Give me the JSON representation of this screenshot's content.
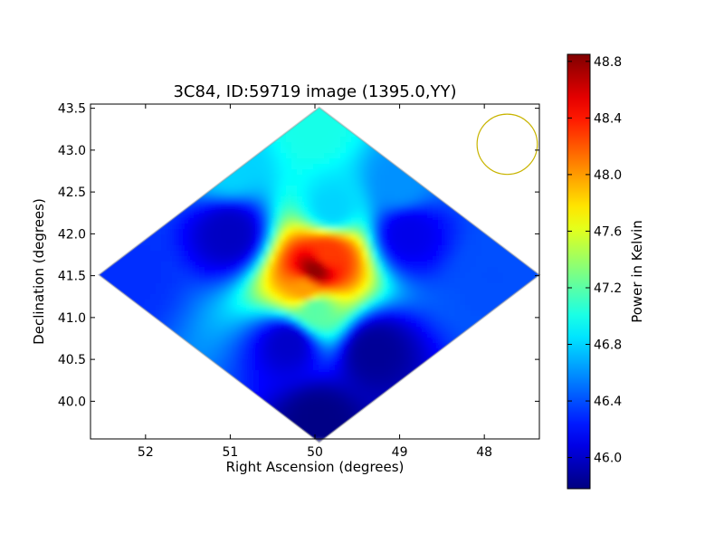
{
  "chart_data": {
    "type": "heatmap",
    "title": "3C84, ID:59719 image (1395.0,YY)",
    "xlabel": "Right Ascension (degrees)",
    "ylabel": "Declination (degrees)",
    "xlim": [
      52.65,
      47.35
    ],
    "ylim": [
      39.55,
      43.55
    ],
    "x_axis_inverted": true,
    "x_ticks": [
      52,
      51,
      50,
      49,
      48
    ],
    "y_ticks": [
      40.0,
      40.5,
      41.0,
      41.5,
      42.0,
      42.5,
      43.0,
      43.5
    ],
    "x_tick_labels": [
      "52",
      "51",
      "50",
      "49",
      "48"
    ],
    "y_tick_labels": [
      "40.0",
      "40.5",
      "41.0",
      "41.5",
      "42.0",
      "42.5",
      "43.0",
      "43.5"
    ],
    "colormap": "jet",
    "colorbar": {
      "label": "Power in Kelvin",
      "vmin": 45.78,
      "vmax": 48.85,
      "ticks": [
        46.0,
        46.4,
        46.8,
        47.2,
        47.6,
        48.0,
        48.4,
        48.8
      ],
      "tick_labels": [
        "46.0",
        "46.4",
        "46.8",
        "47.2",
        "47.6",
        "48.0",
        "48.4",
        "48.8"
      ]
    },
    "map_center": {
      "ra": 49.95,
      "dec": 41.51
    },
    "map_extent": {
      "ra_half_width": 2.6,
      "dec_half_width": 2.0
    },
    "features": [
      {
        "ra": 50.0,
        "dec": 41.55,
        "value": 48.8
      },
      {
        "ra": 49.85,
        "dec": 41.75,
        "value": 48.3
      },
      {
        "ra": 50.1,
        "dec": 41.35,
        "value": 48.0
      },
      {
        "ra": 50.0,
        "dec": 41.1,
        "value": 47.2
      },
      {
        "ra": 49.8,
        "dec": 42.3,
        "value": 46.8
      },
      {
        "ra": 50.0,
        "dec": 43.3,
        "value": 47.0
      },
      {
        "ra": 51.0,
        "dec": 42.8,
        "value": 46.8
      },
      {
        "ra": 49.0,
        "dec": 42.6,
        "value": 46.6
      },
      {
        "ra": 51.0,
        "dec": 42.0,
        "value": 45.98
      },
      {
        "ra": 48.9,
        "dec": 42.0,
        "value": 46.1
      },
      {
        "ra": 50.3,
        "dec": 40.7,
        "value": 46.0
      },
      {
        "ra": 49.3,
        "dec": 40.6,
        "value": 45.85
      },
      {
        "ra": 49.95,
        "dec": 39.75,
        "value": 45.8
      },
      {
        "ra": 52.2,
        "dec": 41.5,
        "value": 46.3
      },
      {
        "ra": 47.9,
        "dec": 41.5,
        "value": 46.4
      }
    ],
    "beam": {
      "ra": 47.73,
      "dec": 43.07,
      "radius_deg": 0.36,
      "color": "#c8b400"
    },
    "grid": false
  }
}
